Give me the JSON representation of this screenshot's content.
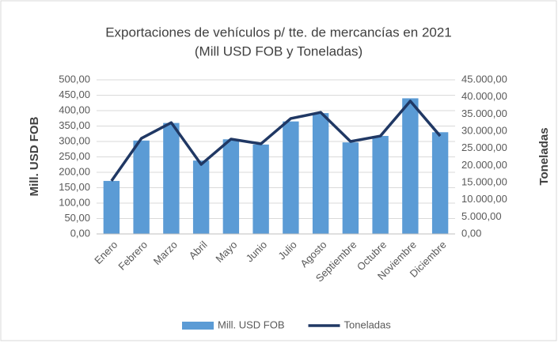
{
  "chart_data": {
    "type": "bar-line",
    "title": "Exportaciones de vehículos p/ tte. de mercancías en 2021",
    "subtitle": "(Mill USD FOB y Toneladas)",
    "y_label": "Mill. USD FOB",
    "y2_label": "Toneladas",
    "categories": [
      "Enero",
      "Febrero",
      "Marzo",
      "Abril",
      "Mayo",
      "Junio",
      "Julio",
      "Agosto",
      "Septiembre",
      "Octubre",
      "Noviembre",
      "Diciembre"
    ],
    "series": [
      {
        "name": "Mill. USD FOB",
        "type": "bar",
        "color": "#5b9bd5",
        "values": [
          172,
          303,
          360,
          238,
          307,
          290,
          365,
          392,
          297,
          318,
          440,
          330
        ]
      },
      {
        "name": "Toneladas",
        "type": "line",
        "axis": "y2",
        "color": "#203864",
        "values": [
          15500,
          27900,
          32500,
          20300,
          27700,
          26300,
          33700,
          35500,
          27000,
          28600,
          38800,
          28600
        ]
      }
    ],
    "ylim": [
      0,
      500
    ],
    "yticks": [
      {
        "value": 0,
        "label": "0,00"
      },
      {
        "value": 50,
        "label": "50,00"
      },
      {
        "value": 100,
        "label": "100,00"
      },
      {
        "value": 150,
        "label": "150,00"
      },
      {
        "value": 200,
        "label": "200,00"
      },
      {
        "value": 250,
        "label": "250,00"
      },
      {
        "value": 300,
        "label": "300,00"
      },
      {
        "value": 350,
        "label": "350,00"
      },
      {
        "value": 400,
        "label": "400,00"
      },
      {
        "value": 450,
        "label": "450,00"
      },
      {
        "value": 500,
        "label": "500,00"
      }
    ],
    "y2lim": [
      0,
      45000
    ],
    "y2ticks": [
      {
        "value": 0,
        "label": "0,00"
      },
      {
        "value": 5000,
        "label": "5.000,00"
      },
      {
        "value": 10000,
        "label": "10.000,00"
      },
      {
        "value": 15000,
        "label": "15.000,00"
      },
      {
        "value": 20000,
        "label": "20.000,00"
      },
      {
        "value": 25000,
        "label": "25.000,00"
      },
      {
        "value": 30000,
        "label": "30.000,00"
      },
      {
        "value": 35000,
        "label": "35.000,00"
      },
      {
        "value": 40000,
        "label": "40.000,00"
      },
      {
        "value": 45000,
        "label": "45.000,00"
      }
    ],
    "legend": "bottom"
  }
}
